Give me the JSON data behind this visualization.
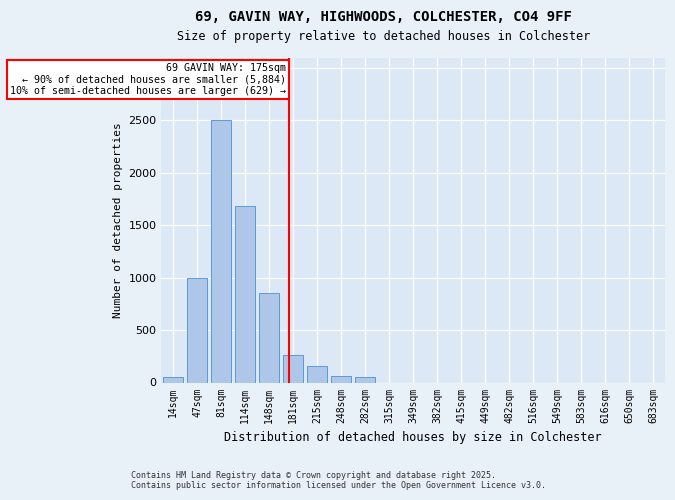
{
  "title1": "69, GAVIN WAY, HIGHWOODS, COLCHESTER, CO4 9FF",
  "title2": "Size of property relative to detached houses in Colchester",
  "xlabel": "Distribution of detached houses by size in Colchester",
  "ylabel": "Number of detached properties",
  "footer1": "Contains HM Land Registry data © Crown copyright and database right 2025.",
  "footer2": "Contains public sector information licensed under the Open Government Licence v3.0.",
  "categories": [
    "14sqm",
    "47sqm",
    "81sqm",
    "114sqm",
    "148sqm",
    "181sqm",
    "215sqm",
    "248sqm",
    "282sqm",
    "315sqm",
    "349sqm",
    "382sqm",
    "415sqm",
    "449sqm",
    "482sqm",
    "516sqm",
    "549sqm",
    "583sqm",
    "616sqm",
    "650sqm",
    "683sqm"
  ],
  "values": [
    55,
    1000,
    2500,
    1680,
    850,
    265,
    155,
    65,
    55,
    0,
    0,
    0,
    0,
    0,
    0,
    0,
    0,
    0,
    0,
    0,
    0
  ],
  "bar_color": "#aec6e8",
  "bar_edge_color": "#5b9bd5",
  "property_line_color": "red",
  "annotation_text": "69 GAVIN WAY: 175sqm\n← 90% of detached houses are smaller (5,884)\n10% of semi-detached houses are larger (629) →",
  "annotation_box_color": "white",
  "annotation_box_edge": "red",
  "ylim": [
    0,
    3100
  ],
  "yticks": [
    0,
    500,
    1000,
    1500,
    2000,
    2500,
    3000
  ],
  "background_color": "#e8f0f8",
  "plot_bg_color": "#dce8f5"
}
